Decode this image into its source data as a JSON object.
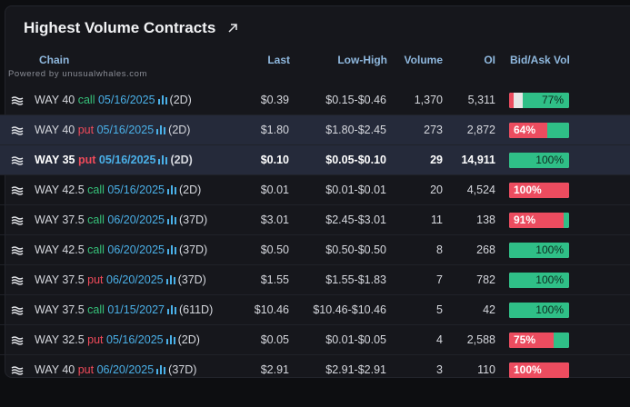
{
  "title": "Highest Volume Contracts",
  "powered_by": "Powered by unusualwhales.com",
  "columns": {
    "chain": "Chain",
    "last": "Last",
    "low_high": "Low-High",
    "volume": "Volume",
    "oi": "OI",
    "bid_ask": "Bid/Ask Vol"
  },
  "colors": {
    "call": "#36c27a",
    "put": "#f04a5a",
    "date": "#4ab0e8",
    "bid": "#ec4c5f",
    "ask": "#2fbf87"
  },
  "rows": [
    {
      "ticker": "WAY 40",
      "type": "call",
      "date": "05/16/2025",
      "dte": "(2D)",
      "last": "$0.39",
      "range": "$0.15-$0.46",
      "volume": "1,370",
      "oi": "5,311",
      "bid_pct": 0.07,
      "ask_pct": 0.77,
      "label": "77%",
      "label_side": "ask",
      "highlight": false,
      "bold": false
    },
    {
      "ticker": "WAY 40",
      "type": "put",
      "date": "05/16/2025",
      "dte": "(2D)",
      "last": "$1.80",
      "range": "$1.80-$2.45",
      "volume": "273",
      "oi": "2,872",
      "bid_pct": 0.64,
      "ask_pct": 0.36,
      "label": "64%",
      "label_side": "bid",
      "highlight": true,
      "bold": false
    },
    {
      "ticker": "WAY 35",
      "type": "put",
      "date": "05/16/2025",
      "dte": "(2D)",
      "last": "$0.10",
      "range": "$0.05-$0.10",
      "volume": "29",
      "oi": "14,911",
      "bid_pct": 0,
      "ask_pct": 1,
      "label": "100%",
      "label_side": "ask",
      "highlight": true,
      "bold": true
    },
    {
      "ticker": "WAY 42.5",
      "type": "call",
      "date": "05/16/2025",
      "dte": "(2D)",
      "last": "$0.01",
      "range": "$0.01-$0.01",
      "volume": "20",
      "oi": "4,524",
      "bid_pct": 1,
      "ask_pct": 0,
      "label": "100%",
      "label_side": "bid",
      "highlight": false,
      "bold": false
    },
    {
      "ticker": "WAY 37.5",
      "type": "call",
      "date": "06/20/2025",
      "dte": "(37D)",
      "last": "$3.01",
      "range": "$2.45-$3.01",
      "volume": "11",
      "oi": "138",
      "bid_pct": 0.91,
      "ask_pct": 0.09,
      "label": "91%",
      "label_side": "bid",
      "highlight": false,
      "bold": false
    },
    {
      "ticker": "WAY 42.5",
      "type": "call",
      "date": "06/20/2025",
      "dte": "(37D)",
      "last": "$0.50",
      "range": "$0.50-$0.50",
      "volume": "8",
      "oi": "268",
      "bid_pct": 0,
      "ask_pct": 1,
      "label": "100%",
      "label_side": "ask",
      "highlight": false,
      "bold": false
    },
    {
      "ticker": "WAY 37.5",
      "type": "put",
      "date": "06/20/2025",
      "dte": "(37D)",
      "last": "$1.55",
      "range": "$1.55-$1.83",
      "volume": "7",
      "oi": "782",
      "bid_pct": 0,
      "ask_pct": 1,
      "label": "100%",
      "label_side": "ask",
      "highlight": false,
      "bold": false
    },
    {
      "ticker": "WAY 37.5",
      "type": "call",
      "date": "01/15/2027",
      "dte": "(611D)",
      "last": "$10.46",
      "range": "$10.46-$10.46",
      "volume": "5",
      "oi": "42",
      "bid_pct": 0,
      "ask_pct": 1,
      "label": "100%",
      "label_side": "ask",
      "highlight": false,
      "bold": false
    },
    {
      "ticker": "WAY 32.5",
      "type": "put",
      "date": "05/16/2025",
      "dte": "(2D)",
      "last": "$0.05",
      "range": "$0.01-$0.05",
      "volume": "4",
      "oi": "2,588",
      "bid_pct": 0.75,
      "ask_pct": 0.25,
      "label": "75%",
      "label_side": "bid",
      "highlight": false,
      "bold": false
    },
    {
      "ticker": "WAY 40",
      "type": "put",
      "date": "06/20/2025",
      "dte": "(37D)",
      "last": "$2.91",
      "range": "$2.91-$2.91",
      "volume": "3",
      "oi": "110",
      "bid_pct": 1,
      "ask_pct": 0,
      "label": "100%",
      "label_side": "bid",
      "highlight": false,
      "bold": false
    }
  ]
}
